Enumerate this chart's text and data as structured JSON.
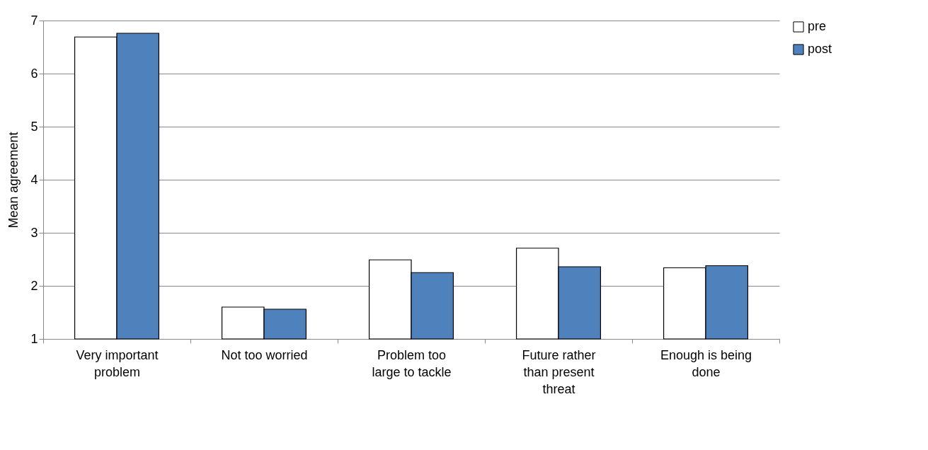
{
  "chart_data": {
    "type": "bar",
    "ylabel": "Mean  agreement",
    "categories": [
      "Very important problem",
      "Not too worried",
      "Problem too large to tackle",
      "Future rather than present threat",
      "Enough is being done"
    ],
    "series": [
      {
        "name": "pre",
        "color": "#ffffff",
        "values": [
          6.69,
          1.6,
          2.49,
          2.71,
          2.34
        ]
      },
      {
        "name": "post",
        "color": "#4f81bd",
        "values": [
          6.76,
          1.56,
          2.25,
          2.36,
          2.38
        ]
      }
    ],
    "ylim": [
      1,
      7
    ],
    "yticks": [
      1,
      2,
      3,
      4,
      5,
      6,
      7
    ],
    "grid": "y",
    "legend": "right"
  }
}
